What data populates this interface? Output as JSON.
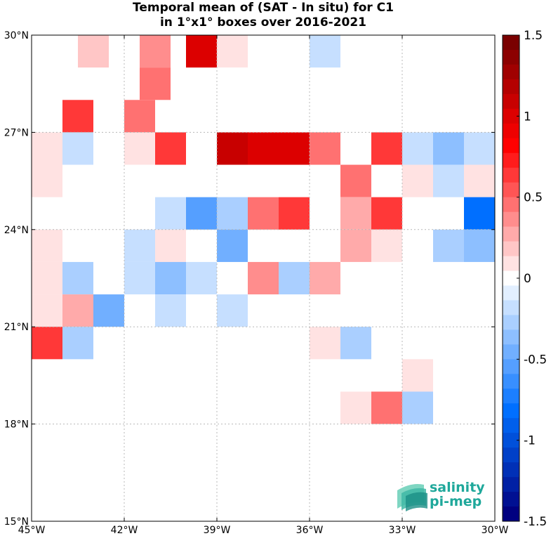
{
  "chart_data": {
    "type": "heatmap",
    "title": "Temporal mean of (SAT - In situ) for C1",
    "subtitle": "in 1°x1° boxes over 2016-2021",
    "x_axis": {
      "range": [
        -45,
        -30
      ],
      "ticks": [
        -45,
        -42,
        -39,
        -36,
        -33,
        -30
      ],
      "tick_labels": [
        "45°W",
        "42°W",
        "39°W",
        "36°W",
        "33°W",
        "30°W"
      ]
    },
    "y_axis": {
      "range": [
        15,
        30
      ],
      "ticks": [
        15,
        18,
        21,
        24,
        27,
        30
      ],
      "tick_labels": [
        "15°N",
        "18°N",
        "21°N",
        "24°N",
        "27°N",
        "30°N"
      ]
    },
    "grid": true,
    "colorbar": {
      "range": [
        -1.5,
        1.5
      ],
      "ticks": [
        1.5,
        1,
        0.5,
        0,
        -0.5,
        -1,
        -1.5
      ],
      "tick_labels": [
        "1.5",
        "1",
        "0.5",
        "0",
        "-0.5",
        "-1",
        "-1.5"
      ],
      "colors_top_to_bottom": [
        "#7a0000",
        "#8c0000",
        "#a00000",
        "#b40000",
        "#c80000",
        "#dc0000",
        "#ee0000",
        "#ff0000",
        "#ff1c1c",
        "#ff3838",
        "#ff5555",
        "#ff7171",
        "#ff8d8d",
        "#ffaaaa",
        "#ffc6c6",
        "#ffe2e2",
        "#ffffff",
        "#e2efff",
        "#c6dfff",
        "#aacfff",
        "#8dbfff",
        "#71afff",
        "#559fff",
        "#388fff",
        "#1c7fff",
        "#006fff",
        "#005fec",
        "#0050da",
        "#0040c8",
        "#0030b6",
        "#0020a4",
        "#001092",
        "#000080"
      ]
    },
    "cells": [
      {
        "lon": -43,
        "lat": 29.5,
        "value": 0.2
      },
      {
        "lon": -41,
        "lat": 29.5,
        "value": 0.35
      },
      {
        "lon": -39.5,
        "lat": 29.5,
        "value": 1.0
      },
      {
        "lon": -38.5,
        "lat": 29.5,
        "value": 0.1
      },
      {
        "lon": -35.5,
        "lat": 29.5,
        "value": -0.2
      },
      {
        "lon": -41,
        "lat": 28.5,
        "value": 0.45
      },
      {
        "lon": -43.5,
        "lat": 27.5,
        "value": 0.65
      },
      {
        "lon": -41.5,
        "lat": 27.5,
        "value": 0.45
      },
      {
        "lon": -44.5,
        "lat": 26.5,
        "value": 0.1
      },
      {
        "lon": -43.5,
        "lat": 26.5,
        "value": -0.15
      },
      {
        "lon": -41.5,
        "lat": 26.5,
        "value": 0.1
      },
      {
        "lon": -40.5,
        "lat": 26.5,
        "value": 0.65
      },
      {
        "lon": -38.5,
        "lat": 26.5,
        "value": 1.1
      },
      {
        "lon": -37.5,
        "lat": 26.5,
        "value": 1.0
      },
      {
        "lon": -36.5,
        "lat": 26.5,
        "value": 1.0
      },
      {
        "lon": -35.5,
        "lat": 26.5,
        "value": 0.5
      },
      {
        "lon": -33.5,
        "lat": 26.5,
        "value": 0.65
      },
      {
        "lon": -32.5,
        "lat": 26.5,
        "value": -0.2
      },
      {
        "lon": -31.5,
        "lat": 26.5,
        "value": -0.35
      },
      {
        "lon": -30.5,
        "lat": 26.5,
        "value": -0.15
      },
      {
        "lon": -44.5,
        "lat": 25.5,
        "value": 0.1
      },
      {
        "lon": -34.5,
        "lat": 25.5,
        "value": 0.5
      },
      {
        "lon": -32.5,
        "lat": 25.5,
        "value": 0.1
      },
      {
        "lon": -31.5,
        "lat": 25.5,
        "value": -0.15
      },
      {
        "lon": -30.5,
        "lat": 25.5,
        "value": 0.1
      },
      {
        "lon": -40.5,
        "lat": 24.5,
        "value": -0.15
      },
      {
        "lon": -39.5,
        "lat": 24.5,
        "value": -0.5
      },
      {
        "lon": -38.5,
        "lat": 24.5,
        "value": -0.25
      },
      {
        "lon": -37.5,
        "lat": 24.5,
        "value": 0.5
      },
      {
        "lon": -36.5,
        "lat": 24.5,
        "value": 0.6
      },
      {
        "lon": -34.5,
        "lat": 24.5,
        "value": 0.25
      },
      {
        "lon": -33.5,
        "lat": 24.5,
        "value": 0.65
      },
      {
        "lon": -30.5,
        "lat": 24.5,
        "value": -0.85
      },
      {
        "lon": -44.5,
        "lat": 23.5,
        "value": 0.1
      },
      {
        "lon": -41.5,
        "lat": 23.5,
        "value": -0.15
      },
      {
        "lon": -40.5,
        "lat": 23.5,
        "value": 0.1
      },
      {
        "lon": -38.5,
        "lat": 23.5,
        "value": -0.45
      },
      {
        "lon": -34.5,
        "lat": 23.5,
        "value": 0.25
      },
      {
        "lon": -33.5,
        "lat": 23.5,
        "value": 0.1
      },
      {
        "lon": -31.5,
        "lat": 23.5,
        "value": -0.25
      },
      {
        "lon": -30.5,
        "lat": 23.5,
        "value": -0.4
      },
      {
        "lon": -44.5,
        "lat": 22.5,
        "value": 0.1
      },
      {
        "lon": -43.5,
        "lat": 22.5,
        "value": -0.3
      },
      {
        "lon": -41.5,
        "lat": 22.5,
        "value": -0.15
      },
      {
        "lon": -40.5,
        "lat": 22.5,
        "value": -0.4
      },
      {
        "lon": -39.5,
        "lat": 22.5,
        "value": -0.15
      },
      {
        "lon": -37.5,
        "lat": 22.5,
        "value": 0.35
      },
      {
        "lon": -36.5,
        "lat": 22.5,
        "value": -0.25
      },
      {
        "lon": -35.5,
        "lat": 22.5,
        "value": 0.25
      },
      {
        "lon": -44.5,
        "lat": 21.5,
        "value": 0.1
      },
      {
        "lon": -43.5,
        "lat": 21.5,
        "value": 0.25
      },
      {
        "lon": -42.5,
        "lat": 21.5,
        "value": -0.45
      },
      {
        "lon": -40.5,
        "lat": 21.5,
        "value": -0.15
      },
      {
        "lon": -38.5,
        "lat": 21.5,
        "value": -0.15
      },
      {
        "lon": -44.5,
        "lat": 20.5,
        "value": 0.65
      },
      {
        "lon": -43.5,
        "lat": 20.5,
        "value": -0.25
      },
      {
        "lon": -35.5,
        "lat": 20.5,
        "value": 0.1
      },
      {
        "lon": -34.5,
        "lat": 20.5,
        "value": -0.25
      },
      {
        "lon": -32.5,
        "lat": 19.5,
        "value": 0.1
      },
      {
        "lon": -34.5,
        "lat": 18.5,
        "value": 0.1
      },
      {
        "lon": -33.5,
        "lat": 18.5,
        "value": 0.5
      },
      {
        "lon": -32.5,
        "lat": 18.5,
        "value": -0.25
      }
    ]
  },
  "logo": {
    "line1": "salinity",
    "line2": "pi-mep"
  }
}
